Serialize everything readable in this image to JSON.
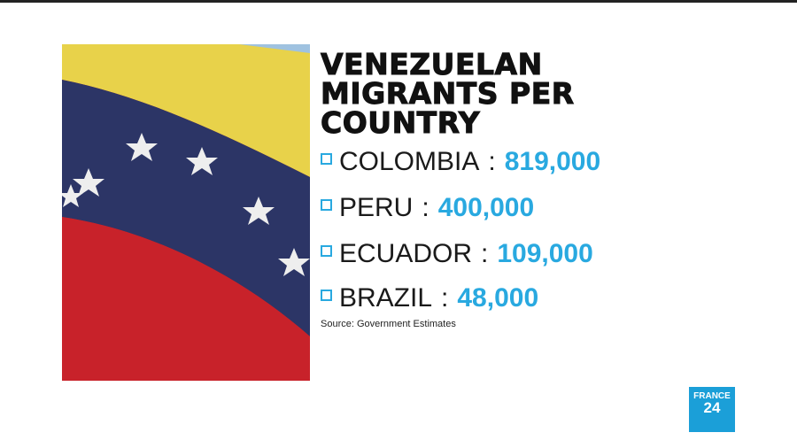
{
  "title": "VENEZUELAN MIGRANTS PER COUNTRY",
  "items": [
    {
      "country": "COLOMBIA",
      "separator": ":",
      "value": "819,000"
    },
    {
      "country": "PERU",
      "separator": ":",
      "value": "400,000"
    },
    {
      "country": "ECUADOR",
      "separator": ":",
      "value": "109,000"
    },
    {
      "country": "BRAZIL",
      "separator": ":",
      "value": "48,000"
    }
  ],
  "source": "Source: Government Estimates",
  "logo": {
    "line1": "FRANCE",
    "line2": "24"
  }
}
